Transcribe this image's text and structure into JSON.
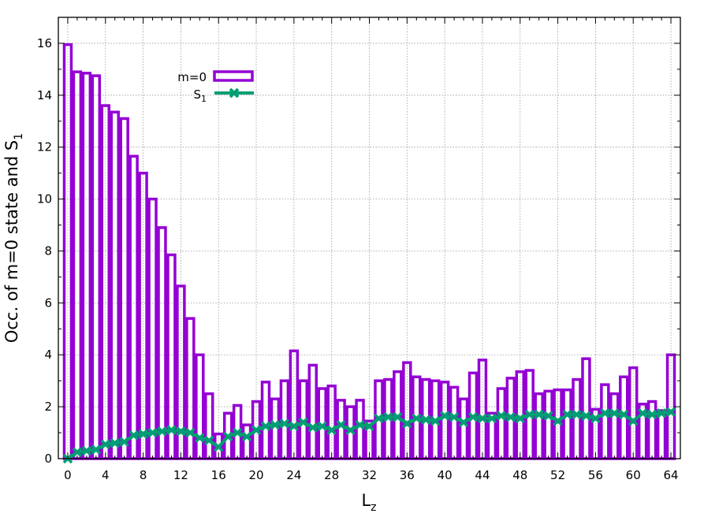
{
  "chart_data": {
    "type": "bar",
    "xlabel": "L",
    "xlabel_sub": "z",
    "ylabel": "Occ. of m=0 state and S",
    "ylabel_sub": "1",
    "xlim": [
      -1,
      65
    ],
    "ylim": [
      0,
      17
    ],
    "x_ticks": [
      0,
      4,
      8,
      12,
      16,
      20,
      24,
      28,
      32,
      36,
      40,
      44,
      48,
      52,
      56,
      60,
      64
    ],
    "y_ticks": [
      0,
      2,
      4,
      6,
      8,
      10,
      12,
      14,
      16
    ],
    "grid": true,
    "legend_position": "top-left",
    "x": [
      0,
      1,
      2,
      3,
      4,
      5,
      6,
      7,
      8,
      9,
      10,
      11,
      12,
      13,
      14,
      15,
      16,
      17,
      18,
      19,
      20,
      21,
      22,
      23,
      24,
      25,
      26,
      27,
      28,
      29,
      30,
      31,
      32,
      33,
      34,
      35,
      36,
      37,
      38,
      39,
      40,
      41,
      42,
      43,
      44,
      45,
      46,
      47,
      48,
      49,
      50,
      51,
      52,
      53,
      54,
      55,
      56,
      57,
      58,
      59,
      60,
      61,
      62,
      63,
      64
    ],
    "series": [
      {
        "name": "m=0",
        "kind": "bar",
        "color": "#9400d3",
        "values": [
          15.95,
          14.9,
          14.85,
          14.75,
          13.6,
          13.35,
          13.1,
          11.65,
          11.0,
          10.0,
          8.9,
          7.85,
          6.65,
          5.4,
          4.0,
          2.5,
          0.95,
          1.75,
          2.05,
          1.3,
          2.2,
          2.95,
          2.3,
          3.0,
          4.15,
          3.0,
          3.6,
          2.7,
          2.8,
          2.25,
          2.0,
          2.25,
          1.45,
          3.0,
          3.05,
          3.35,
          3.7,
          3.15,
          3.05,
          3.0,
          2.95,
          2.75,
          2.3,
          3.3,
          3.8,
          1.75,
          2.7,
          3.1,
          3.35,
          3.4,
          2.5,
          2.6,
          2.65,
          2.65,
          3.05,
          3.85,
          1.9,
          2.85,
          2.5,
          3.15,
          3.5,
          2.1,
          2.2,
          1.85,
          4.0
        ]
      },
      {
        "name": "S",
        "name_sub": "1",
        "kind": "line",
        "marker": "x",
        "color": "#009e73",
        "values": [
          0.0,
          0.25,
          0.3,
          0.35,
          0.55,
          0.6,
          0.65,
          0.9,
          0.95,
          1.0,
          1.05,
          1.1,
          1.05,
          1.0,
          0.8,
          0.7,
          0.45,
          0.85,
          1.0,
          0.85,
          1.1,
          1.25,
          1.3,
          1.35,
          1.25,
          1.4,
          1.2,
          1.25,
          1.1,
          1.3,
          1.1,
          1.3,
          1.25,
          1.55,
          1.6,
          1.6,
          1.35,
          1.55,
          1.5,
          1.45,
          1.65,
          1.6,
          1.4,
          1.6,
          1.55,
          1.55,
          1.65,
          1.6,
          1.55,
          1.7,
          1.7,
          1.65,
          1.45,
          1.7,
          1.7,
          1.65,
          1.55,
          1.75,
          1.75,
          1.7,
          1.45,
          1.75,
          1.7,
          1.75,
          1.8
        ]
      }
    ]
  }
}
